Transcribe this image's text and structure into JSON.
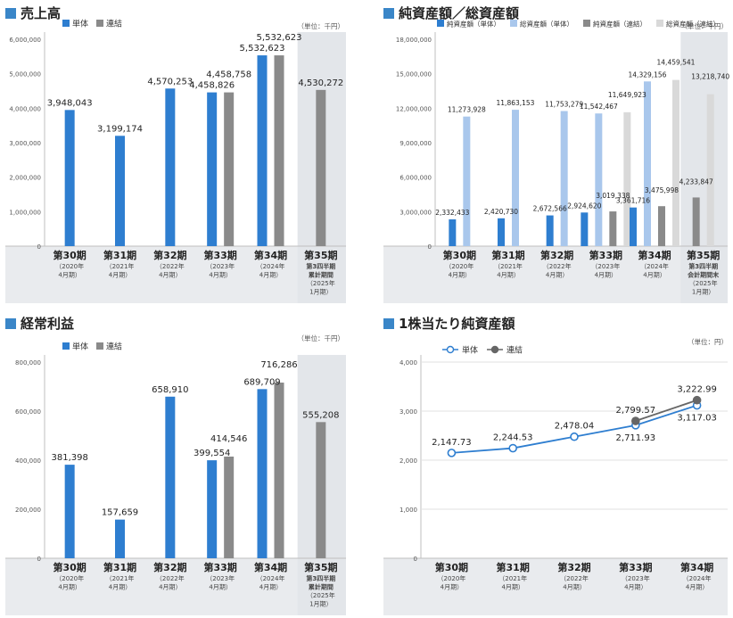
{
  "colors": {
    "tan": "#2e7ed0",
    "ren": "#8a8a8a",
    "sou_tan": "#a9c7ec",
    "sou_ren": "#d9d9d9",
    "shade": "#e3e6ea",
    "accent": "#3a86c8"
  },
  "chart_data": [
    {
      "id": "sales",
      "type": "bar",
      "title": "売上高",
      "unit": "（単位：千円）",
      "legend": [
        {
          "name": "単体",
          "color": "#2e7ed0"
        },
        {
          "name": "連結",
          "color": "#8a8a8a"
        }
      ],
      "y_ticks": [
        "6,000,000",
        "5,000,000",
        "4,000,000",
        "3,000,000",
        "2,000,000",
        "1,000,000",
        "0"
      ],
      "ylim": [
        0,
        6000000
      ],
      "categories": [
        {
          "label": "第30期",
          "sub": [
            "（2020年",
            "4月期）"
          ]
        },
        {
          "label": "第31期",
          "sub": [
            "（2021年",
            "4月期）"
          ]
        },
        {
          "label": "第32期",
          "sub": [
            "（2022年",
            "4月期）"
          ]
        },
        {
          "label": "第33期",
          "sub": [
            "（2023年",
            "4月期）"
          ]
        },
        {
          "label": "第34期",
          "sub": [
            "（2024年",
            "4月期）"
          ]
        },
        {
          "label": "第35期",
          "sub": [
            "第3四半期",
            "累計期間",
            "（2025年",
            "1月期）"
          ]
        }
      ],
      "series": [
        {
          "name": "単体",
          "values": [
            3948043,
            3199174,
            4570253,
            4458826,
            5532623,
            null
          ],
          "labels": [
            "3,948,043",
            "3,199,174",
            "4,570,253",
            "4,458,826",
            "5,532,623",
            ""
          ]
        },
        {
          "name": "連結",
          "values": [
            null,
            null,
            null,
            4458758,
            5532623,
            4530272
          ],
          "labels": [
            "",
            "",
            "",
            "4,458,758",
            "5,532,623",
            "4,530,272"
          ]
        }
      ]
    },
    {
      "id": "assets",
      "type": "bar",
      "title": "純資産額／総資産額",
      "unit": "（単位：千円）",
      "legend": [
        {
          "name": "純資産額（単体）",
          "color": "#2e7ed0"
        },
        {
          "name": "総資産額（単体）",
          "color": "#a9c7ec"
        },
        {
          "name": "純資産額（連結）",
          "color": "#8a8a8a"
        },
        {
          "name": "総資産額（連結）",
          "color": "#d9d9d9"
        }
      ],
      "y_ticks": [
        "18,000,000",
        "15,000,000",
        "12,000,000",
        "9,000,000",
        "6,000,000",
        "3,000,000",
        "0"
      ],
      "ylim": [
        0,
        18000000
      ],
      "categories": [
        {
          "label": "第30期",
          "sub": [
            "（2020年",
            "4月期）"
          ]
        },
        {
          "label": "第31期",
          "sub": [
            "（2021年",
            "4月期）"
          ]
        },
        {
          "label": "第32期",
          "sub": [
            "（2022年",
            "4月期）"
          ]
        },
        {
          "label": "第33期",
          "sub": [
            "（2023年",
            "4月期）"
          ]
        },
        {
          "label": "第34期",
          "sub": [
            "（2024年",
            "4月期）"
          ]
        },
        {
          "label": "第35期",
          "sub": [
            "第3四半期",
            "会計期間末",
            "（2025年",
            "1月期）"
          ]
        }
      ],
      "series": [
        {
          "name": "純資産額（単体）",
          "values": [
            2332433,
            2420730,
            2672566,
            2924620,
            3361716,
            null
          ],
          "labels": [
            "2,332,433",
            "2,420,730",
            "2,672,566",
            "2,924,620",
            "3,361,716",
            ""
          ]
        },
        {
          "name": "総資産額（単体）",
          "values": [
            11273928,
            11863153,
            11753279,
            11542467,
            14329156,
            null
          ],
          "labels": [
            "11,273,928",
            "11,863,153",
            "11,753,279",
            "11,542,467",
            "14,329,156",
            ""
          ]
        },
        {
          "name": "純資産額（連結）",
          "values": [
            null,
            null,
            null,
            3019338,
            3475998,
            4233847
          ],
          "labels": [
            "",
            "",
            "",
            "3,019,338",
            "3,475,998",
            "4,233,847"
          ]
        },
        {
          "name": "総資産額（連結）",
          "values": [
            null,
            null,
            null,
            11649923,
            14459541,
            13218740
          ],
          "labels": [
            "",
            "",
            "",
            "11,649,923",
            "14,459,541",
            "13,218,740"
          ]
        }
      ]
    },
    {
      "id": "profit",
      "type": "bar",
      "title": "経常利益",
      "unit": "（単位：千円）",
      "legend": [
        {
          "name": "単体",
          "color": "#2e7ed0"
        },
        {
          "name": "連結",
          "color": "#8a8a8a"
        }
      ],
      "y_ticks": [
        "800,000",
        "600,000",
        "400,000",
        "200,000",
        "0"
      ],
      "ylim": [
        0,
        800000
      ],
      "categories": [
        {
          "label": "第30期",
          "sub": [
            "（2020年",
            "4月期）"
          ]
        },
        {
          "label": "第31期",
          "sub": [
            "（2021年",
            "4月期）"
          ]
        },
        {
          "label": "第32期",
          "sub": [
            "（2022年",
            "4月期）"
          ]
        },
        {
          "label": "第33期",
          "sub": [
            "（2023年",
            "4月期）"
          ]
        },
        {
          "label": "第34期",
          "sub": [
            "（2024年",
            "4月期）"
          ]
        },
        {
          "label": "第35期",
          "sub": [
            "第3四半期",
            "累計期間",
            "（2025年",
            "1月期）"
          ]
        }
      ],
      "series": [
        {
          "name": "単体",
          "values": [
            381398,
            157659,
            658910,
            399554,
            689709,
            null
          ],
          "labels": [
            "381,398",
            "157,659",
            "658,910",
            "399,554",
            "689,709",
            ""
          ]
        },
        {
          "name": "連結",
          "values": [
            null,
            null,
            null,
            414546,
            716286,
            555208
          ],
          "labels": [
            "",
            "",
            "",
            "414,546",
            "716,286",
            "555,208"
          ]
        }
      ]
    },
    {
      "id": "bps",
      "type": "line",
      "title": "1株当たり純資産額",
      "unit": "（単位：円）",
      "legend": [
        {
          "name": "単体",
          "color": "#2e7ed0"
        },
        {
          "name": "連結",
          "color": "#666666"
        }
      ],
      "y_ticks": [
        "4,000",
        "3,000",
        "2,000",
        "1,000",
        "0"
      ],
      "ylim": [
        0,
        4000
      ],
      "categories": [
        {
          "label": "第30期",
          "sub": [
            "（2020年",
            "4月期）"
          ]
        },
        {
          "label": "第31期",
          "sub": [
            "（2021年",
            "4月期）"
          ]
        },
        {
          "label": "第32期",
          "sub": [
            "（2022年",
            "4月期）"
          ]
        },
        {
          "label": "第33期",
          "sub": [
            "（2023年",
            "4月期）"
          ]
        },
        {
          "label": "第34期",
          "sub": [
            "（2024年",
            "4月期）"
          ]
        }
      ],
      "series": [
        {
          "name": "単体",
          "values": [
            2147.73,
            2244.53,
            2478.04,
            2711.93,
            3117.03
          ],
          "labels": [
            "2,147.73",
            "2,244.53",
            "2,478.04",
            "2,711.93",
            "3,117.03"
          ]
        },
        {
          "name": "連結",
          "values": [
            null,
            null,
            null,
            2799.57,
            3222.99
          ],
          "labels": [
            "",
            "",
            "",
            "2,799.57",
            "3,222.99"
          ]
        }
      ]
    }
  ]
}
